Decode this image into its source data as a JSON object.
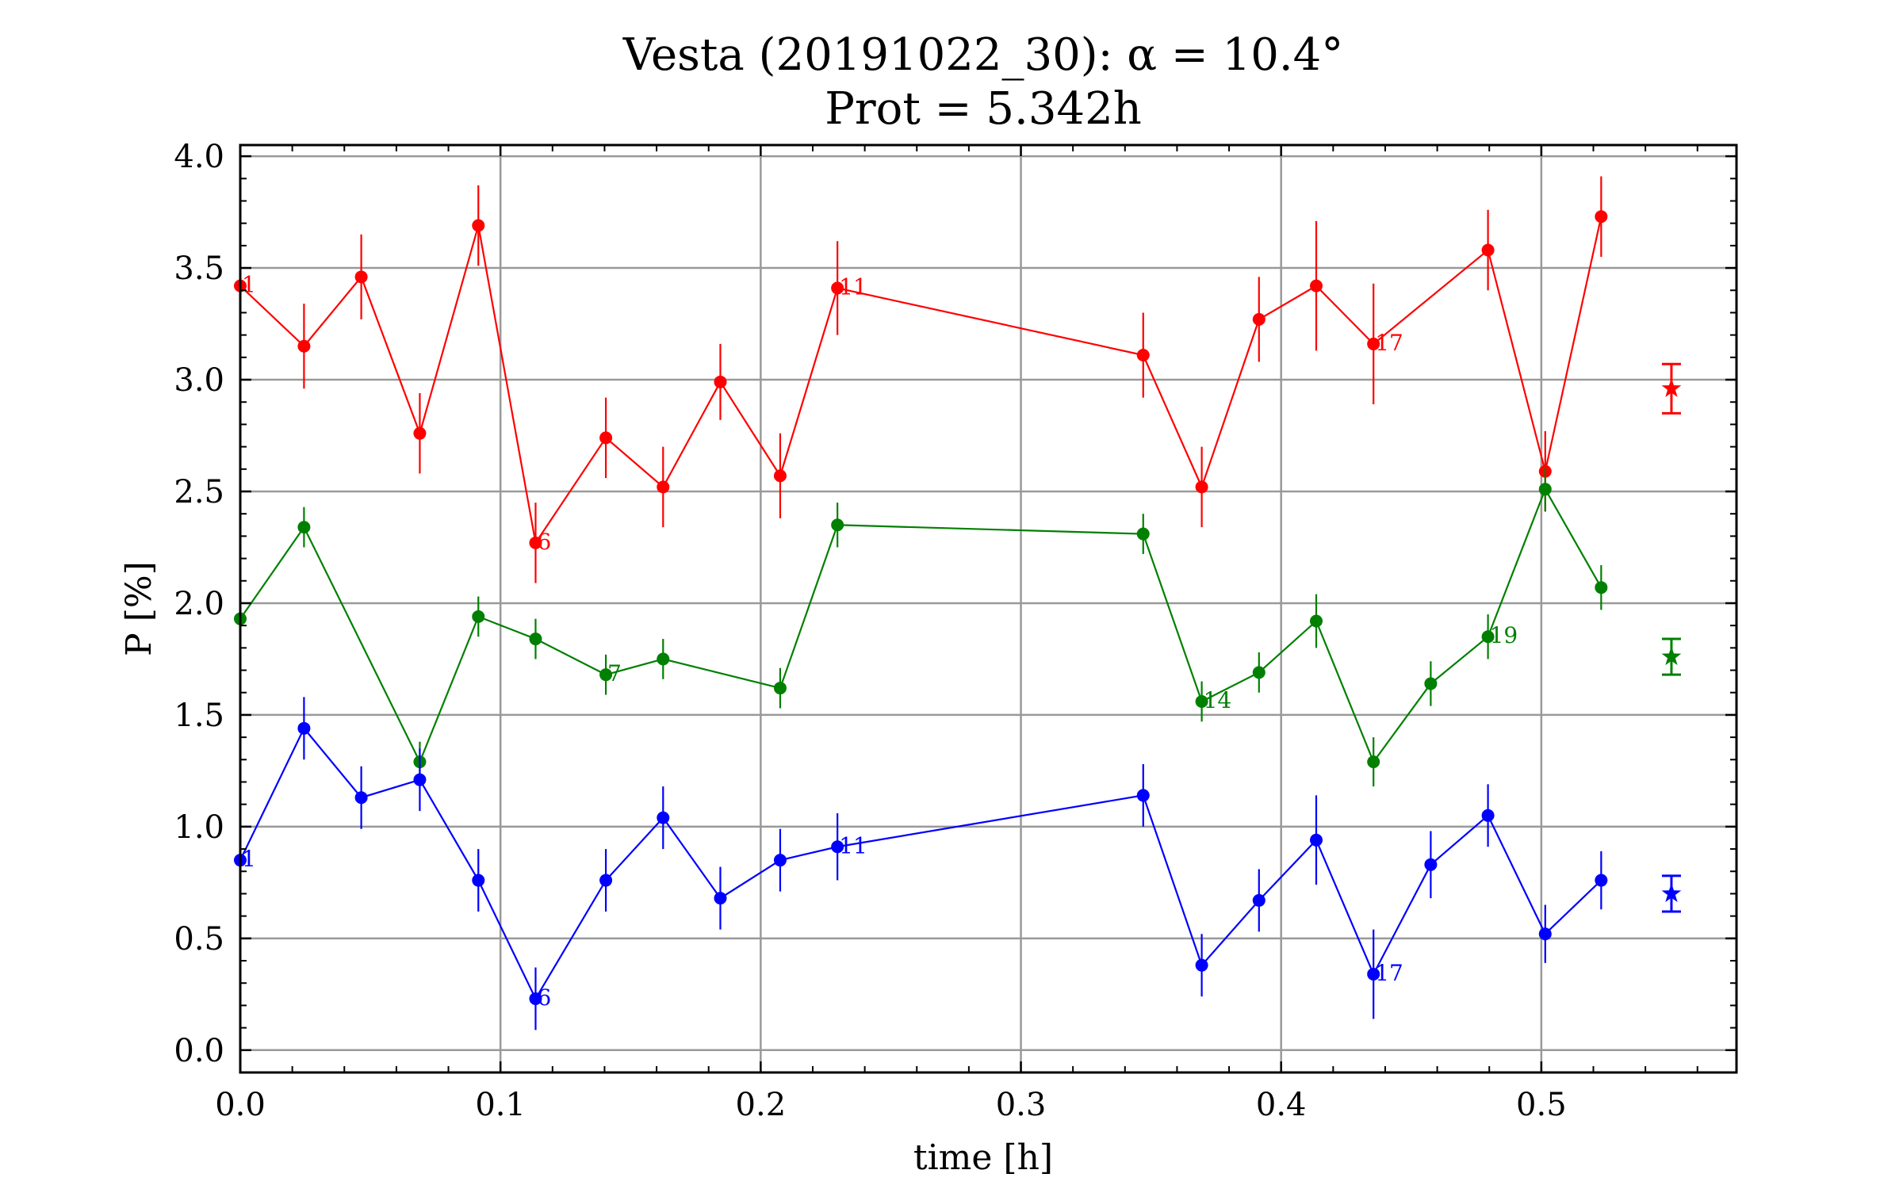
{
  "chart_data": {
    "type": "scatter",
    "title": "Vesta (20191022_30): α = 10.4°",
    "subtitle": "Prot = 5.342h",
    "xlabel": "time [h]",
    "ylabel": "P [%]",
    "xlim": [
      0.0,
      0.575
    ],
    "ylim": [
      -0.1,
      4.05
    ],
    "xticks": [
      0.0,
      0.1,
      0.2,
      0.3,
      0.4,
      0.5
    ],
    "xtick_labels": [
      "0.0",
      "0.1",
      "0.2",
      "0.3",
      "0.4",
      "0.5"
    ],
    "yticks": [
      0.0,
      0.5,
      1.0,
      1.5,
      2.0,
      2.5,
      3.0,
      3.5,
      4.0
    ],
    "ytick_labels": [
      "0.0",
      "0.5",
      "1.0",
      "1.5",
      "2.0",
      "2.5",
      "3.0",
      "3.5",
      "4.0"
    ],
    "grid": true,
    "x": [
      0.0,
      0.0245,
      0.0465,
      0.069,
      0.0915,
      0.1135,
      0.1405,
      0.1625,
      0.1845,
      0.2075,
      0.2295,
      0.347,
      0.3695,
      0.3915,
      0.4135,
      0.4355,
      0.4575,
      0.4795,
      0.5015,
      0.523
    ],
    "series": [
      {
        "color": "#ff0000",
        "values": [
          3.42,
          3.15,
          3.46,
          2.76,
          3.69,
          2.27,
          2.74,
          2.52,
          2.99,
          2.57,
          3.41,
          3.11,
          2.52,
          3.27,
          3.42,
          3.16,
          null,
          3.58,
          2.59,
          3.73
        ],
        "errors": [
          0.12,
          0.19,
          0.19,
          0.18,
          0.18,
          0.18,
          0.18,
          0.18,
          0.17,
          0.19,
          0.21,
          0.19,
          0.18,
          0.19,
          0.29,
          0.27,
          null,
          0.18,
          0.18,
          0.18
        ],
        "labels": [
          {
            "index": 0,
            "text": "1"
          },
          {
            "index": 5,
            "text": "6"
          },
          {
            "index": 10,
            "text": "11"
          },
          {
            "index": 15,
            "text": "17"
          }
        ],
        "mean": 2.96,
        "mean_error": 0.11
      },
      {
        "color": "#008000",
        "values": [
          1.93,
          2.34,
          null,
          1.29,
          1.94,
          1.84,
          1.68,
          1.75,
          null,
          1.62,
          2.35,
          2.31,
          1.56,
          1.69,
          1.92,
          1.29,
          1.64,
          1.85,
          2.51,
          2.07
        ],
        "errors": [
          0.08,
          0.09,
          null,
          0.09,
          0.09,
          0.09,
          0.09,
          0.09,
          null,
          0.09,
          0.1,
          0.09,
          0.09,
          0.09,
          0.12,
          0.11,
          0.1,
          0.1,
          0.1,
          0.1
        ],
        "labels": [
          {
            "index": 6,
            "text": "7"
          },
          {
            "index": 12,
            "text": "14"
          },
          {
            "index": 17,
            "text": "19"
          }
        ],
        "mean": 1.76,
        "mean_error": 0.08
      },
      {
        "color": "#0000ff",
        "values": [
          0.85,
          1.44,
          1.13,
          1.21,
          0.76,
          0.23,
          0.76,
          1.04,
          0.68,
          0.85,
          0.91,
          1.14,
          0.38,
          0.67,
          0.94,
          0.34,
          0.83,
          1.05,
          0.52,
          0.76
        ],
        "errors": [
          0.07,
          0.14,
          0.14,
          0.14,
          0.14,
          0.14,
          0.14,
          0.14,
          0.14,
          0.14,
          0.15,
          0.14,
          0.14,
          0.14,
          0.2,
          0.2,
          0.15,
          0.14,
          0.13,
          0.13
        ],
        "labels": [
          {
            "index": 0,
            "text": "1"
          },
          {
            "index": 5,
            "text": "6"
          },
          {
            "index": 10,
            "text": "11"
          },
          {
            "index": 15,
            "text": "17"
          }
        ],
        "mean": 0.7,
        "mean_error": 0.08
      }
    ],
    "mean_x": 0.55
  }
}
